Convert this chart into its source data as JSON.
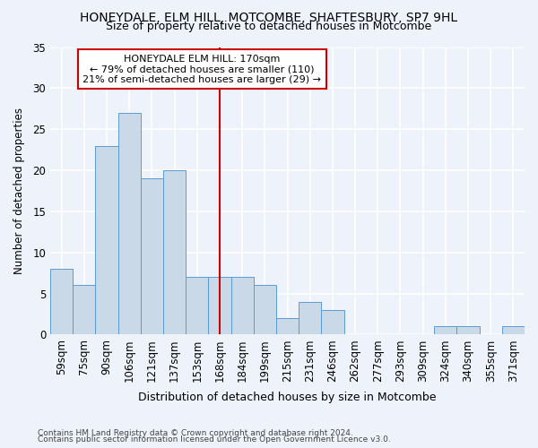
{
  "title": "HONEYDALE, ELM HILL, MOTCOMBE, SHAFTESBURY, SP7 9HL",
  "subtitle": "Size of property relative to detached houses in Motcombe",
  "xlabel": "Distribution of detached houses by size in Motcombe",
  "ylabel": "Number of detached properties",
  "categories": [
    "59sqm",
    "75sqm",
    "90sqm",
    "106sqm",
    "121sqm",
    "137sqm",
    "153sqm",
    "168sqm",
    "184sqm",
    "199sqm",
    "215sqm",
    "231sqm",
    "246sqm",
    "262sqm",
    "277sqm",
    "293sqm",
    "309sqm",
    "324sqm",
    "340sqm",
    "355sqm",
    "371sqm"
  ],
  "values": [
    8,
    6,
    23,
    27,
    19,
    20,
    7,
    7,
    7,
    6,
    2,
    4,
    3,
    0,
    0,
    0,
    0,
    1,
    1,
    0,
    1
  ],
  "bar_color": "#c9d9e8",
  "bar_edge_color": "#5b9bd5",
  "background_color": "#eef2fa",
  "grid_color": "#ffffff",
  "vline_x": 7,
  "vline_color": "#cc0000",
  "annotation_text": "HONEYDALE ELM HILL: 170sqm\n← 79% of detached houses are smaller (110)\n21% of semi-detached houses are larger (29) →",
  "annotation_box_color": "#ffffff",
  "annotation_box_edge": "#cc0000",
  "ylim": [
    0,
    35
  ],
  "yticks": [
    0,
    5,
    10,
    15,
    20,
    25,
    30,
    35
  ],
  "footer1": "Contains HM Land Registry data © Crown copyright and database right 2024.",
  "footer2": "Contains public sector information licensed under the Open Government Licence v3.0."
}
